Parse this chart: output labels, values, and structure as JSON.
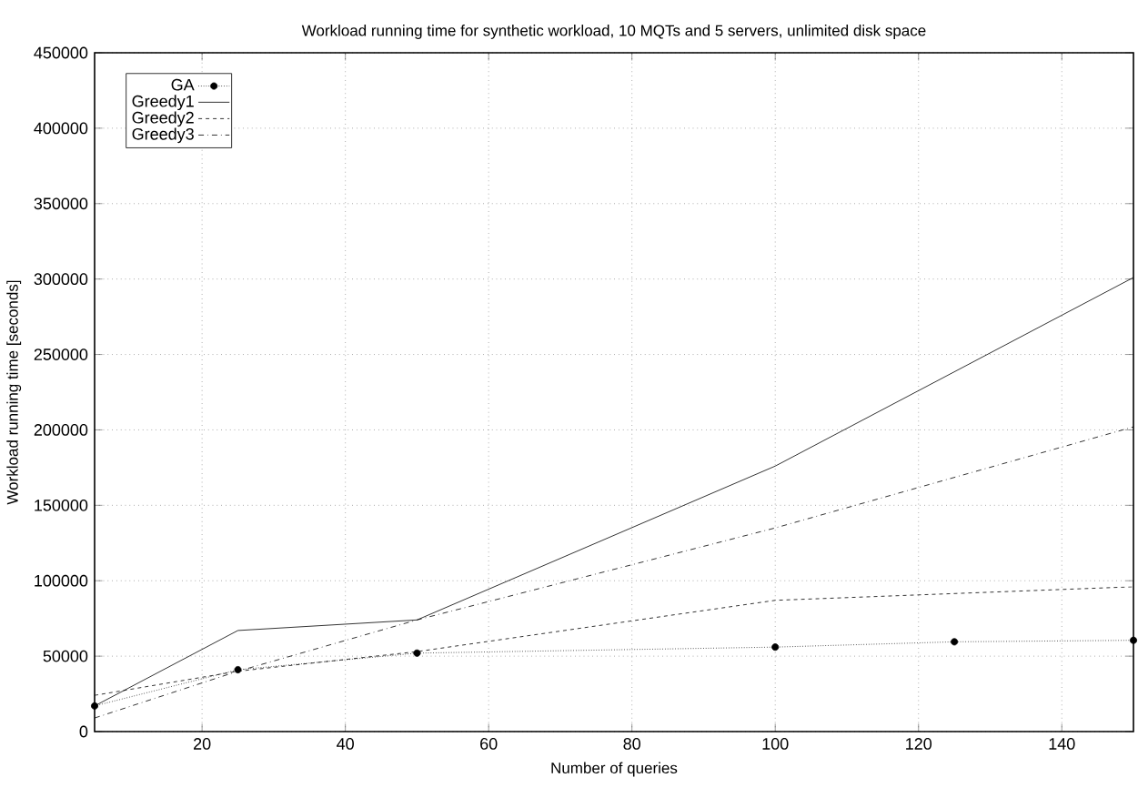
{
  "chart_data": {
    "type": "line",
    "title": "Workload running time for synthetic workload, 10 MQTs and 5 servers, unlimited disk space",
    "xlabel": "Number of queries",
    "ylabel": "Workload running time [seconds]",
    "xlim": [
      5,
      150
    ],
    "xticks": [
      20,
      40,
      60,
      80,
      100,
      120,
      140
    ],
    "ylim": [
      0,
      450000
    ],
    "yticks": [
      0,
      50000,
      100000,
      150000,
      200000,
      250000,
      300000,
      350000,
      400000,
      450000
    ],
    "grid": true,
    "legend": "top left",
    "series": [
      {
        "name": "GA",
        "color": "#000000",
        "line_style": "dotted",
        "marker": "circle",
        "x": [
          5,
          25,
          50,
          100,
          125,
          150
        ],
        "values": [
          17000,
          41000,
          52000,
          56000,
          59500,
          60500
        ]
      },
      {
        "name": "Greedy1",
        "color": "#000000",
        "line_style": "solid",
        "x": [
          5,
          25,
          50,
          100,
          150
        ],
        "values": [
          17000,
          67000,
          74000,
          176000,
          301000
        ]
      },
      {
        "name": "Greedy2",
        "color": "#000000",
        "line_style": "dashed",
        "x": [
          5,
          25,
          50,
          100,
          150
        ],
        "values": [
          24000,
          40000,
          53000,
          87000,
          96000
        ]
      },
      {
        "name": "Greedy3",
        "color": "#000000",
        "line_style": "dashdot",
        "x": [
          5,
          25,
          50,
          100,
          150
        ],
        "values": [
          9000,
          40000,
          74000,
          135000,
          202000
        ]
      }
    ]
  }
}
